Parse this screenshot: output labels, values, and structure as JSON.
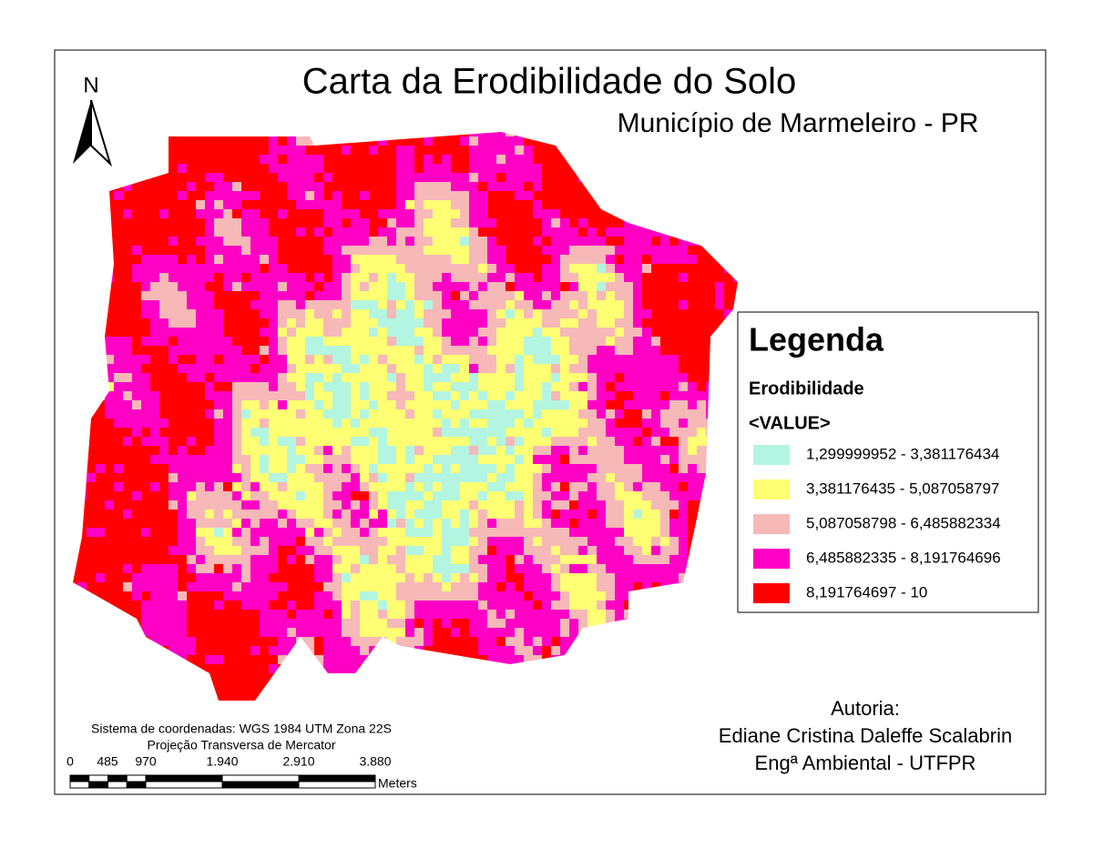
{
  "header": {
    "title": "Carta da Erodibilidade do Solo",
    "subtitle": "Município de Marmeleiro - PR"
  },
  "north_arrow": {
    "label": "N"
  },
  "legend": {
    "title": "Legenda",
    "field": "Erodibilidade",
    "value_field": "<VALUE>",
    "items": [
      {
        "label": "1,299999952 - 3,381176434",
        "color": "#b3f5e0"
      },
      {
        "label": "3,381176435 - 5,087058797",
        "color": "#ffff73"
      },
      {
        "label": "5,087058798 - 6,485882334",
        "color": "#f7b8b8"
      },
      {
        "label": "6,485882335 - 8,191764696",
        "color": "#ff00c5"
      },
      {
        "label": "8,191764697 - 10",
        "color": "#ff0000"
      }
    ]
  },
  "scale": {
    "coordinate_system": "Sistema de coordenadas: WGS 1984 UTM Zona 22S",
    "projection": "Projeção Transversa de Mercator",
    "ticks": [
      "0",
      "485",
      "970",
      "1.940",
      "2.910",
      "3.880"
    ],
    "units": "Meters"
  },
  "author": {
    "heading": "Autoria:",
    "name": "Ediane Cristina Daleffe Scalabrin",
    "role": "Engª Ambiental - UTFPR"
  }
}
